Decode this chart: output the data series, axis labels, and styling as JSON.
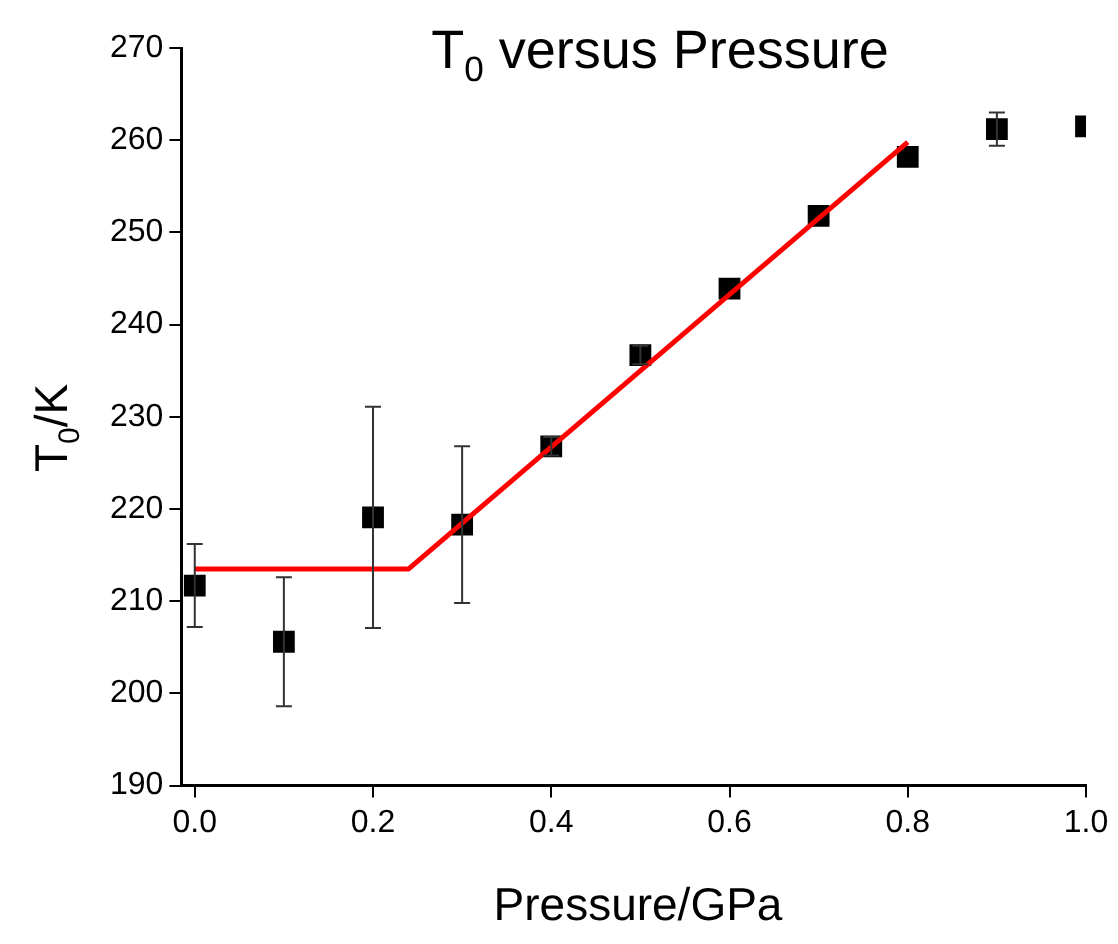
{
  "chart_data": {
    "type": "scatter",
    "title": "T$_{0}$ versus Pressure",
    "xlabel": "Pressure/GPa",
    "ylabel": "T$_{0}$/K",
    "x": [
      0,
      0.1,
      0.2,
      0.3,
      0.4,
      0.5,
      0.6,
      0.7,
      0.8,
      0.9,
      1.0
    ],
    "series": [
      {
        "color": "#000000",
        "marker": "square",
        "values": [
          211.7,
          205.6,
          219.1,
          218.3,
          226.8,
          236.7,
          243.9,
          251.8,
          258.2,
          261.2,
          261.5
        ],
        "errors": [
          4.5,
          7,
          12,
          8.5,
          1,
          1,
          null,
          null,
          null,
          1.8,
          null
        ]
      },
      {
        "type": "line",
        "color": "#ff0000",
        "marker": "none",
        "x": [
          0,
          0.24,
          0.8
        ],
        "values": [
          213.5,
          213.5,
          259.8
        ]
      }
    ],
    "xlim": [
      -0.015,
      1.0
    ],
    "ylim": [
      190,
      270
    ],
    "xticks": [
      {
        "value": 0,
        "label": "0.0"
      },
      {
        "value": 0.2,
        "label": "0.2"
      },
      {
        "value": 0.4,
        "label": "0.4"
      },
      {
        "value": 0.6,
        "label": "0.6"
      },
      {
        "value": 0.8,
        "label": "0.8"
      },
      {
        "value": 1.0,
        "label": "1.0"
      }
    ],
    "yticks": [
      190,
      200,
      210,
      220,
      230,
      240,
      250,
      260,
      270
    ],
    "grid": false,
    "legend": false
  }
}
